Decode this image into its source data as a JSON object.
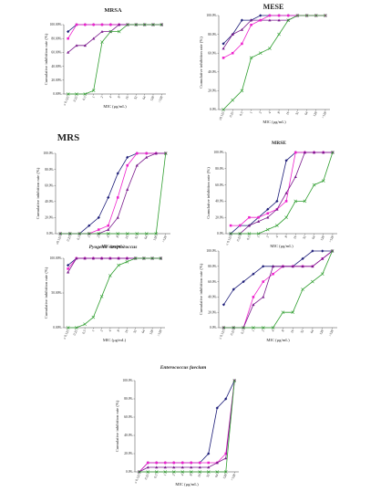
{
  "figure": {
    "caption": ""
  },
  "chart_data": [
    {
      "type": "line",
      "title": "MRSA",
      "xlabel": "MIC (μg/mL)",
      "ylabel": "Cumulative inhibition rate (%)",
      "ylim": [
        0,
        100
      ],
      "yticks": [
        "0.00%",
        "20.00%",
        "40.00%",
        "60.00%",
        "80.00%",
        "100.00%"
      ],
      "categories": [
        "≤ 0.125",
        "0.25",
        "0.5",
        "1",
        "2",
        "4",
        "8",
        "16",
        "32",
        "64",
        "128",
        ">128"
      ],
      "colors": {
        "navy": "#1c1c78",
        "purple": "#7a1a8c",
        "magenta": "#ee22cc",
        "green": "#2f9e2f"
      },
      "series": [
        {
          "color": "navy",
          "marker": "diamond",
          "values": [
            90,
            100,
            100,
            100,
            100,
            100,
            100,
            100,
            100,
            100,
            100,
            100
          ]
        },
        {
          "color": "magenta",
          "marker": "square",
          "values": [
            80,
            100,
            100,
            100,
            100,
            100,
            100,
            100,
            100,
            100,
            100,
            100
          ]
        },
        {
          "color": "purple",
          "marker": "triangle",
          "values": [
            60,
            70,
            70,
            80,
            90,
            90,
            100,
            100,
            100,
            100,
            100,
            100
          ]
        },
        {
          "color": "green",
          "marker": "x",
          "values": [
            0,
            0,
            0,
            5,
            75,
            90,
            90,
            100,
            100,
            100,
            100,
            100
          ]
        }
      ]
    },
    {
      "type": "line",
      "title": "MESE",
      "xlabel": "MIC (μg/mL)",
      "ylabel": "Cumulative inhibition rate (%)",
      "ylim": [
        0,
        100
      ],
      "yticks": [
        "0.0%",
        "20.0%",
        "40.0%",
        "60.0%",
        "80.0%",
        "100.0%"
      ],
      "categories": [
        "≤0.125",
        "0.25",
        "0.5",
        "1",
        "2",
        "4",
        "8",
        "16",
        "32",
        "64",
        "128",
        ">128"
      ],
      "series": [
        {
          "color": "navy",
          "marker": "diamond",
          "values": [
            70,
            80,
            95,
            95,
            100,
            100,
            100,
            100,
            100,
            100,
            100,
            100
          ]
        },
        {
          "color": "purple",
          "marker": "triangle",
          "values": [
            65,
            80,
            85,
            95,
            95,
            95,
            95,
            95,
            100,
            100,
            100,
            100
          ]
        },
        {
          "color": "magenta",
          "marker": "square",
          "values": [
            55,
            60,
            70,
            90,
            95,
            100,
            100,
            100,
            100,
            100,
            100,
            100
          ]
        },
        {
          "color": "green",
          "marker": "x",
          "values": [
            0,
            10,
            20,
            55,
            60,
            65,
            80,
            95,
            100,
            100,
            100,
            100
          ]
        }
      ]
    },
    {
      "type": "line",
      "title": "MRS",
      "xlabel": "MIC (μg/mL)",
      "ylabel": "Cumulative inhibition rate (%)",
      "ylim": [
        0,
        100
      ],
      "yticks": [
        "0.0%",
        "20.0%",
        "40.0%",
        "60.0%",
        "80.0%",
        "100.0%"
      ],
      "categories": [
        "≤0.125",
        "0.25",
        "0.5",
        "1",
        "2",
        "4",
        "8",
        "16",
        "32",
        "64",
        "128",
        ">128"
      ],
      "series": [
        {
          "color": "navy",
          "marker": "diamond",
          "values": [
            0,
            0,
            0,
            10,
            20,
            45,
            75,
            95,
            100,
            100,
            100,
            100
          ]
        },
        {
          "color": "magenta",
          "marker": "square",
          "values": [
            0,
            0,
            0,
            0,
            5,
            10,
            45,
            85,
            100,
            100,
            100,
            100
          ]
        },
        {
          "color": "purple",
          "marker": "triangle",
          "values": [
            0,
            0,
            0,
            0,
            0,
            5,
            20,
            55,
            85,
            95,
            100,
            100
          ]
        },
        {
          "color": "green",
          "marker": "x",
          "values": [
            0,
            0,
            0,
            0,
            0,
            0,
            0,
            0,
            0,
            0,
            0,
            100
          ]
        }
      ]
    },
    {
      "type": "line",
      "title": "MRSE",
      "xlabel": "MIC (μg/mL)",
      "ylabel": "Cumulative inhibition rate (%)",
      "ylim": [
        0,
        100
      ],
      "yticks": [
        "0.0%",
        "20.0%",
        "40.0%",
        "60.0%",
        "80.0%",
        "100.0%"
      ],
      "categories": [
        "≤ 0.125",
        "0.25",
        "0.5",
        "1",
        "2",
        "4",
        "8",
        "16",
        "32",
        "64",
        "128",
        ">128"
      ],
      "series": [
        {
          "color": "navy",
          "marker": "diamond",
          "values": [
            0,
            10,
            10,
            20,
            30,
            40,
            90,
            100,
            100,
            100,
            100,
            100
          ]
        },
        {
          "color": "magenta",
          "marker": "square",
          "values": [
            10,
            10,
            20,
            20,
            25,
            30,
            40,
            100,
            100,
            100,
            100,
            100
          ]
        },
        {
          "color": "purple",
          "marker": "triangle",
          "values": [
            0,
            0,
            10,
            15,
            20,
            30,
            50,
            70,
            100,
            100,
            100,
            100
          ]
        },
        {
          "color": "green",
          "marker": "x",
          "values": [
            0,
            0,
            0,
            0,
            5,
            10,
            20,
            40,
            40,
            60,
            65,
            100
          ]
        }
      ]
    },
    {
      "type": "line",
      "title": "Pyogenic streptococcus",
      "xlabel": "MIC (μg/mL)",
      "ylabel": "Cumulative inhibition rate (%)",
      "ylim": [
        0,
        100
      ],
      "yticks": [
        "0.00%",
        "50.00%",
        "100.00%"
      ],
      "categories": [
        "≤ 0.125",
        "0.25",
        "0.5",
        "1",
        "2",
        "4",
        "8",
        "16",
        "32",
        "64",
        "128",
        ">128"
      ],
      "series": [
        {
          "color": "navy",
          "marker": "diamond",
          "values": [
            90,
            100,
            100,
            100,
            100,
            100,
            100,
            100,
            100,
            100,
            100,
            100
          ]
        },
        {
          "color": "magenta",
          "marker": "square",
          "values": [
            85,
            100,
            100,
            100,
            100,
            100,
            100,
            100,
            100,
            100,
            100,
            100
          ]
        },
        {
          "color": "purple",
          "marker": "triangle",
          "values": [
            80,
            100,
            100,
            100,
            100,
            100,
            100,
            100,
            100,
            100,
            100,
            100
          ]
        },
        {
          "color": "green",
          "marker": "x",
          "values": [
            0,
            0,
            5,
            15,
            45,
            75,
            90,
            95,
            100,
            100,
            100,
            100
          ]
        }
      ]
    },
    {
      "type": "line",
      "title": "",
      "xlabel": "MIC (μg/mL)",
      "ylabel": "Cumulative inhibition rate (%)",
      "ylim": [
        0,
        100
      ],
      "yticks": [
        "0.0%",
        "20.0%",
        "40.0%",
        "60.0%",
        "80.0%",
        "100.0%"
      ],
      "categories": [
        "≤ 0.125",
        "0.25",
        "0.5",
        "1",
        "2",
        "4",
        "8",
        "16",
        "32",
        "64",
        "128",
        ">128"
      ],
      "series": [
        {
          "color": "navy",
          "marker": "diamond",
          "values": [
            30,
            50,
            60,
            70,
            80,
            80,
            80,
            80,
            90,
            100,
            100,
            100
          ]
        },
        {
          "color": "magenta",
          "marker": "square",
          "values": [
            0,
            0,
            0,
            40,
            60,
            70,
            80,
            80,
            80,
            80,
            90,
            100
          ]
        },
        {
          "color": "purple",
          "marker": "triangle",
          "values": [
            0,
            0,
            0,
            30,
            40,
            80,
            80,
            80,
            80,
            80,
            90,
            100
          ]
        },
        {
          "color": "green",
          "marker": "x",
          "values": [
            0,
            0,
            0,
            0,
            0,
            0,
            20,
            20,
            50,
            60,
            70,
            100
          ]
        }
      ]
    },
    {
      "type": "line",
      "title": "Enterococcus faecium",
      "xlabel": "MIC (μg/mL)",
      "ylabel": "Cumulative inhibition rate (%)",
      "ylim": [
        0,
        100
      ],
      "yticks": [
        "0.0%",
        "20.0%",
        "40.0%",
        "60.0%",
        "80.0%",
        "100.0%"
      ],
      "categories": [
        "≤ 0.125",
        "0.25",
        "0.5",
        "1",
        "2",
        "4",
        "8",
        "16",
        "32",
        "64",
        "128",
        ">128"
      ],
      "series": [
        {
          "color": "navy",
          "marker": "diamond",
          "values": [
            0,
            10,
            10,
            10,
            10,
            10,
            10,
            10,
            20,
            70,
            80,
            100
          ]
        },
        {
          "color": "magenta",
          "marker": "square",
          "values": [
            0,
            10,
            10,
            10,
            10,
            10,
            10,
            10,
            10,
            10,
            20,
            100
          ]
        },
        {
          "color": "purple",
          "marker": "triangle",
          "values": [
            0,
            5,
            5,
            5,
            5,
            5,
            5,
            5,
            5,
            10,
            15,
            100
          ]
        },
        {
          "color": "green",
          "marker": "x",
          "values": [
            0,
            0,
            0,
            0,
            0,
            0,
            0,
            0,
            0,
            0,
            0,
            100
          ]
        }
      ]
    }
  ]
}
